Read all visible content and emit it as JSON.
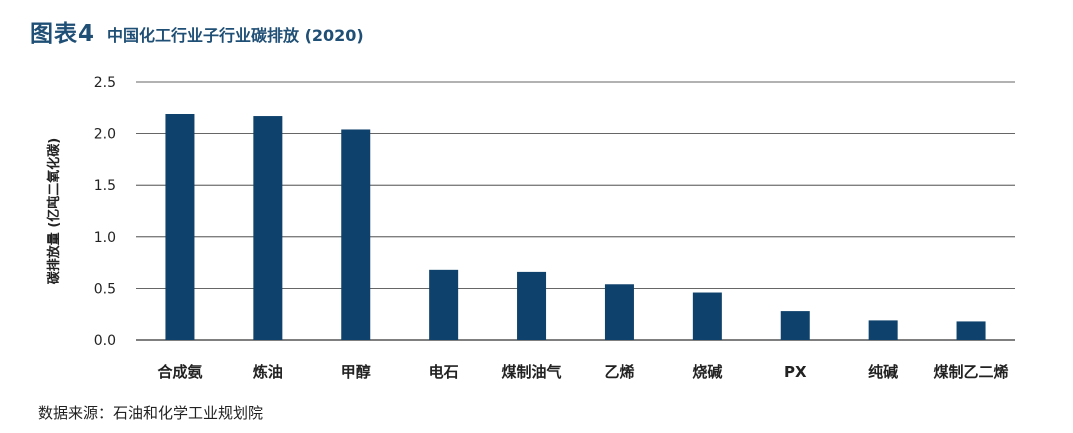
{
  "header": {
    "figure_label": "图表4",
    "title": "中国化工行业子行业碳排放 (2020)"
  },
  "source": "数据来源：石油和化学工业规划院",
  "colors": {
    "bar": "#0e416b",
    "title": "#1f4f75",
    "grid": "#333333"
  },
  "chart_data": {
    "type": "bar",
    "title": "中国化工行业子行业碳排放 (2020)",
    "xlabel": "",
    "ylabel": "碳排放量 (亿吨二氧化碳)",
    "categories": [
      "合成氨",
      "炼油",
      "甲醇",
      "电石",
      "煤制油气",
      "乙烯",
      "烧碱",
      "PX",
      "纯碱",
      "煤制乙二烯"
    ],
    "values": [
      2.19,
      2.17,
      2.04,
      0.68,
      0.66,
      0.54,
      0.46,
      0.28,
      0.19,
      0.18
    ],
    "ylim": [
      0,
      2.5
    ],
    "yticks": [
      "0.0",
      "0.5",
      "1.0",
      "1.5",
      "2.0",
      "2.5"
    ],
    "grid": true,
    "legend": "none"
  }
}
